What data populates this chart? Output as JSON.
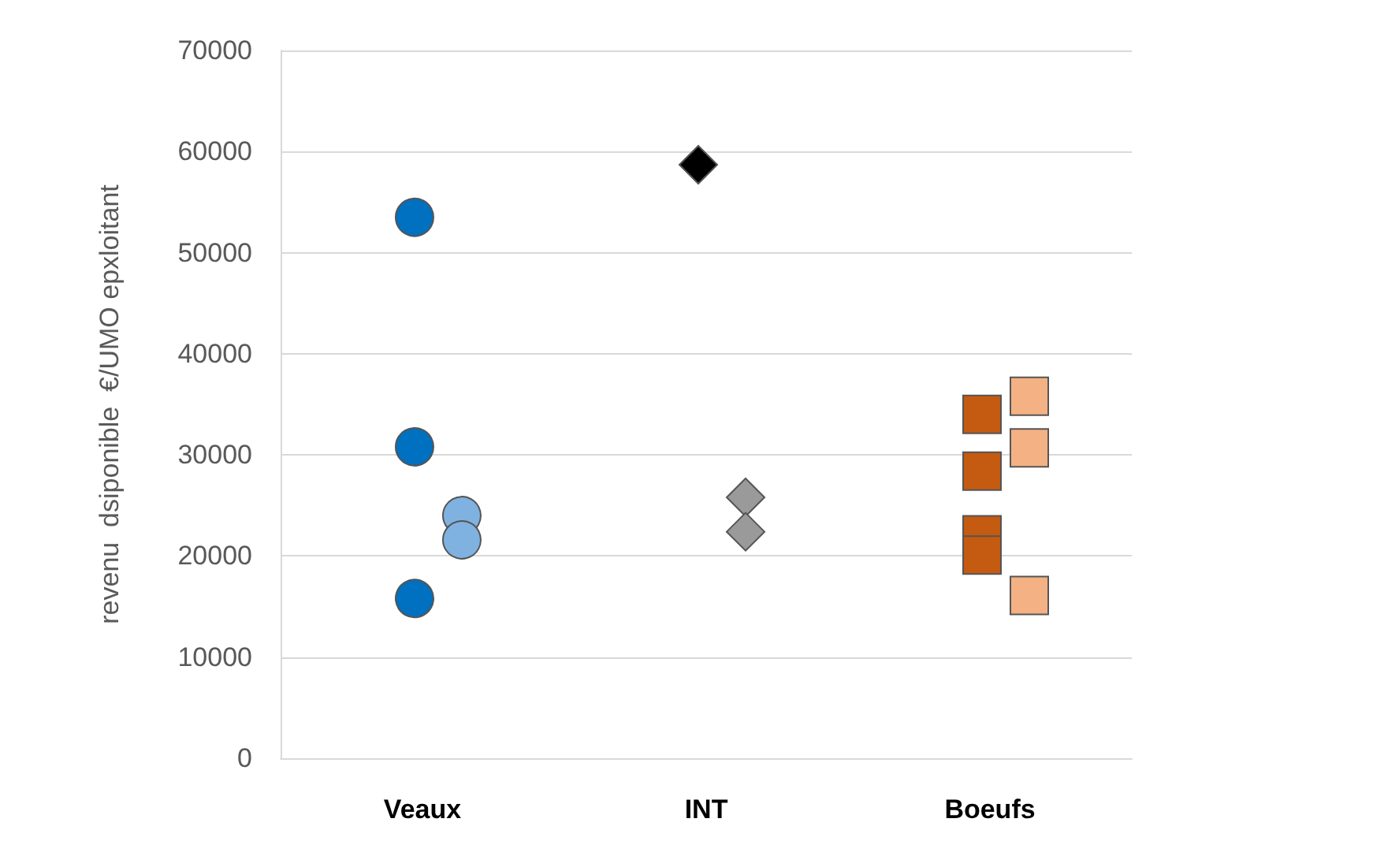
{
  "chart_data": {
    "type": "scatter",
    "ylabel": "revenu  dsiponible  €/UMO epxloitant",
    "categories": [
      "Veaux",
      "INT",
      "Boeufs"
    ],
    "ylim": [
      0,
      70000
    ],
    "yticks": [
      0,
      10000,
      20000,
      30000,
      40000,
      50000,
      60000,
      70000
    ],
    "grid": "y",
    "series": [
      {
        "x": [
          "Veaux",
          "Veaux",
          "Veaux"
        ],
        "values": [
          53500,
          30800,
          15800
        ],
        "color": "#0070c0",
        "marker": "circle"
      },
      {
        "x": [
          "Veaux",
          "Veaux"
        ],
        "values": [
          24000,
          21600
        ],
        "color": "#7fb2e0",
        "marker": "circle"
      },
      {
        "x": [
          "INT"
        ],
        "values": [
          58700
        ],
        "color": "#000000",
        "marker": "diamond"
      },
      {
        "x": [
          "INT",
          "INT"
        ],
        "values": [
          25800,
          22400
        ],
        "color": "#9a9a9a",
        "marker": "diamond"
      },
      {
        "x": [
          "Boeufs",
          "Boeufs",
          "Boeufs",
          "Boeufs"
        ],
        "values": [
          34000,
          28400,
          22100,
          20100
        ],
        "color": "#c55a11",
        "marker": "square"
      },
      {
        "x": [
          "Boeufs",
          "Boeufs",
          "Boeufs"
        ],
        "values": [
          35800,
          30700,
          16100
        ],
        "color": "#f4b183",
        "marker": "square"
      }
    ]
  }
}
